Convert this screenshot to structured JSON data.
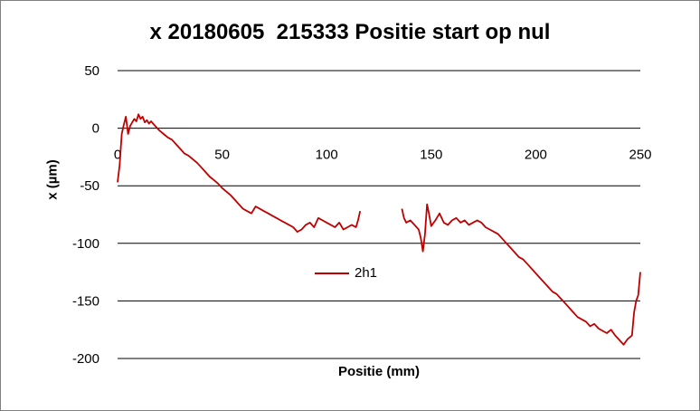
{
  "chart_data": {
    "type": "line",
    "title": "x 20180605  215333 Positie start op nul",
    "xlabel": "Positie (mm)",
    "ylabel": "x (µm)",
    "xlim": [
      0,
      250
    ],
    "ylim": [
      -200,
      50
    ],
    "x_ticks": [
      "0",
      "50",
      "100",
      "150",
      "200",
      "250"
    ],
    "y_ticks": [
      "50",
      "0",
      "-50",
      "-100",
      "-150",
      "-200"
    ],
    "grid": "horizontal",
    "legend_position": "center",
    "series": [
      {
        "name": "2h1",
        "color": "#c00000",
        "segments": [
          [
            [
              0,
              -47
            ],
            [
              1,
              -32
            ],
            [
              2,
              -5
            ],
            [
              3,
              3
            ],
            [
              4,
              10
            ],
            [
              5,
              -5
            ],
            [
              6,
              2
            ],
            [
              7,
              5
            ],
            [
              8,
              8
            ],
            [
              9,
              6
            ],
            [
              10,
              12
            ],
            [
              11,
              8
            ],
            [
              12,
              10
            ],
            [
              13,
              5
            ],
            [
              14,
              7
            ],
            [
              15,
              4
            ],
            [
              16,
              6
            ],
            [
              18,
              2
            ],
            [
              20,
              -2
            ],
            [
              22,
              -5
            ],
            [
              24,
              -8
            ],
            [
              26,
              -10
            ],
            [
              28,
              -14
            ],
            [
              30,
              -18
            ],
            [
              32,
              -22
            ],
            [
              34,
              -24
            ],
            [
              36,
              -27
            ],
            [
              38,
              -30
            ],
            [
              40,
              -34
            ],
            [
              42,
              -38
            ],
            [
              44,
              -42
            ],
            [
              46,
              -45
            ],
            [
              48,
              -48
            ],
            [
              50,
              -52
            ],
            [
              52,
              -55
            ],
            [
              54,
              -58
            ],
            [
              56,
              -62
            ],
            [
              58,
              -66
            ],
            [
              60,
              -70
            ],
            [
              62,
              -72
            ],
            [
              64,
              -74
            ],
            [
              66,
              -68
            ],
            [
              68,
              -70
            ],
            [
              70,
              -72
            ],
            [
              72,
              -74
            ],
            [
              74,
              -76
            ],
            [
              76,
              -78
            ],
            [
              78,
              -80
            ],
            [
              80,
              -82
            ],
            [
              82,
              -84
            ],
            [
              84,
              -86
            ],
            [
              86,
              -90
            ],
            [
              88,
              -88
            ],
            [
              90,
              -84
            ],
            [
              92,
              -82
            ],
            [
              94,
              -86
            ],
            [
              96,
              -78
            ],
            [
              98,
              -80
            ],
            [
              100,
              -82
            ],
            [
              102,
              -84
            ],
            [
              104,
              -86
            ],
            [
              106,
              -82
            ],
            [
              108,
              -88
            ],
            [
              110,
              -86
            ],
            [
              112,
              -84
            ],
            [
              114,
              -86
            ],
            [
              115,
              -80
            ],
            [
              116,
              -72
            ]
          ],
          [
            [
              136,
              -70
            ],
            [
              137,
              -78
            ],
            [
              138,
              -82
            ],
            [
              140,
              -80
            ],
            [
              142,
              -84
            ],
            [
              144,
              -88
            ],
            [
              145,
              -95
            ],
            [
              146,
              -107
            ],
            [
              147,
              -92
            ],
            [
              148,
              -66
            ],
            [
              149,
              -75
            ],
            [
              150,
              -85
            ],
            [
              152,
              -80
            ],
            [
              154,
              -74
            ],
            [
              156,
              -82
            ],
            [
              158,
              -84
            ],
            [
              160,
              -80
            ],
            [
              162,
              -78
            ],
            [
              164,
              -82
            ],
            [
              166,
              -80
            ],
            [
              168,
              -84
            ],
            [
              170,
              -82
            ],
            [
              172,
              -80
            ],
            [
              174,
              -82
            ],
            [
              176,
              -86
            ],
            [
              178,
              -88
            ],
            [
              180,
              -90
            ],
            [
              182,
              -92
            ],
            [
              184,
              -96
            ],
            [
              186,
              -100
            ],
            [
              188,
              -104
            ],
            [
              190,
              -108
            ],
            [
              192,
              -112
            ],
            [
              194,
              -114
            ],
            [
              196,
              -118
            ],
            [
              198,
              -122
            ],
            [
              200,
              -126
            ],
            [
              202,
              -130
            ],
            [
              204,
              -134
            ],
            [
              206,
              -138
            ],
            [
              208,
              -142
            ],
            [
              210,
              -144
            ],
            [
              212,
              -148
            ],
            [
              214,
              -152
            ],
            [
              216,
              -156
            ],
            [
              218,
              -160
            ],
            [
              220,
              -164
            ],
            [
              222,
              -166
            ],
            [
              224,
              -168
            ],
            [
              226,
              -172
            ],
            [
              228,
              -170
            ],
            [
              230,
              -174
            ],
            [
              232,
              -176
            ],
            [
              234,
              -178
            ],
            [
              236,
              -175
            ],
            [
              238,
              -180
            ],
            [
              240,
              -184
            ],
            [
              242,
              -188
            ],
            [
              244,
              -183
            ],
            [
              246,
              -180
            ],
            [
              247,
              -160
            ],
            [
              248,
              -150
            ],
            [
              249,
              -145
            ],
            [
              250,
              -125
            ]
          ]
        ]
      }
    ]
  }
}
